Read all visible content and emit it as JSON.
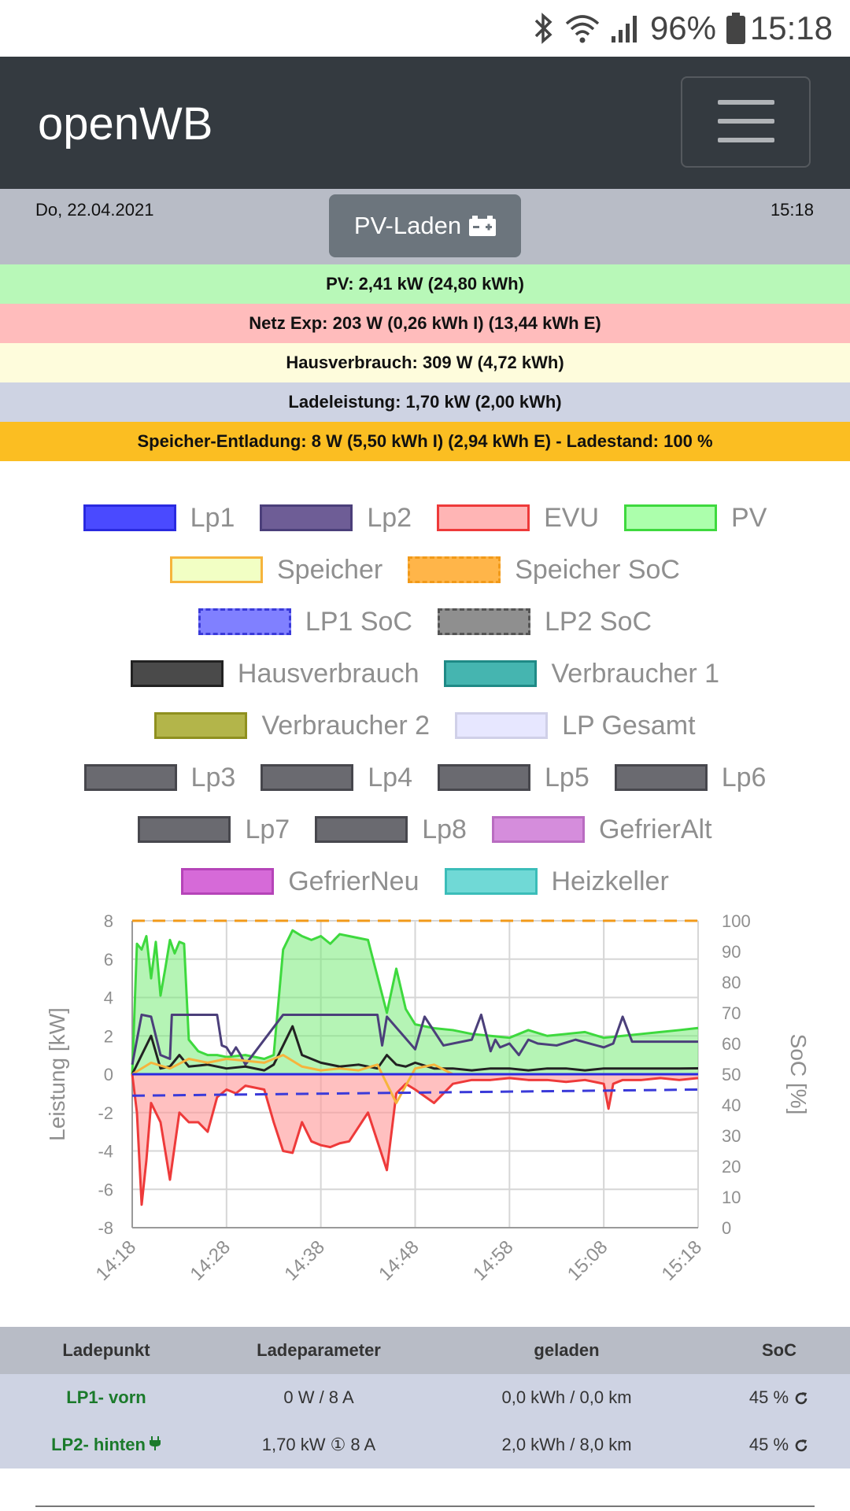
{
  "status_bar": {
    "battery_percent": "96%",
    "time": "15:18",
    "icons": [
      "bluetooth-icon",
      "wifi-icon",
      "signal-icon",
      "battery-icon"
    ]
  },
  "navbar": {
    "brand": "openWB",
    "menu_icon": "hamburger-icon"
  },
  "header": {
    "date": "Do, 22.04.2021",
    "time": "15:18",
    "mode_label": "PV-Laden",
    "mode_icon": "car-battery-icon"
  },
  "info_rows": [
    {
      "text": "PV: 2,41 kW (24,80 kWh)",
      "color": "#b8f8b8"
    },
    {
      "text": "Netz Exp: 203 W (0,26 kWh I) (13,44 kWh E)",
      "color": "#ffbcbc"
    },
    {
      "text": "Hausverbrauch: 309 W (4,72 kWh)",
      "color": "#fefcdc"
    },
    {
      "text": "Ladeleistung: 1,70 kW (2,00 kWh)",
      "color": "#ced3e3"
    },
    {
      "text": "Speicher-Entladung: 8 W (5,50 kWh I) (2,94 kWh E) - Ladestand: 100 %",
      "color": "#fbbe22"
    }
  ],
  "legend": {
    "rows": [
      [
        {
          "label": "Lp1",
          "fill": "#4a4aff",
          "border": "#2a2ae0",
          "dashed": false
        },
        {
          "label": "Lp2",
          "fill": "#6e5d96",
          "border": "#4b3f7a",
          "dashed": false
        },
        {
          "label": "EVU",
          "fill": "#ffb5b5",
          "border": "#ee3a3a",
          "dashed": false
        },
        {
          "label": "PV",
          "fill": "#acffac",
          "border": "#3ed93e",
          "dashed": false
        }
      ],
      [
        {
          "label": "Speicher",
          "fill": "#f2ffc4",
          "border": "#f6b43c",
          "dashed": false
        },
        {
          "label": "Speicher SoC",
          "fill": "#ffb549",
          "border": "#f19a1a",
          "dashed": true
        }
      ],
      [
        {
          "label": "LP1 SoC",
          "fill": "#8080ff",
          "border": "#3a3ad9",
          "dashed": true
        },
        {
          "label": "LP2 SoC",
          "fill": "#8f8f8f",
          "border": "#555555",
          "dashed": true
        }
      ],
      [
        {
          "label": "Hausverbrauch",
          "fill": "#4a4a4a",
          "border": "#222222",
          "dashed": false
        },
        {
          "label": "Verbraucher 1",
          "fill": "#45b5b0",
          "border": "#1f8a86",
          "dashed": false
        }
      ],
      [
        {
          "label": "Verbraucher 2",
          "fill": "#b3b54a",
          "border": "#8f901f",
          "dashed": false
        },
        {
          "label": "LP Gesamt",
          "fill": "#e7e7ff",
          "border": "#d0d0e8",
          "dashed": false
        }
      ],
      [
        {
          "label": "Lp3",
          "fill": "#6a6a70",
          "border": "#47474d",
          "dashed": false
        },
        {
          "label": "Lp4",
          "fill": "#6a6a70",
          "border": "#47474d",
          "dashed": false
        },
        {
          "label": "Lp5",
          "fill": "#6a6a70",
          "border": "#47474d",
          "dashed": false
        },
        {
          "label": "Lp6",
          "fill": "#6a6a70",
          "border": "#47474d",
          "dashed": false
        }
      ],
      [
        {
          "label": "Lp7",
          "fill": "#6a6a70",
          "border": "#47474d",
          "dashed": false
        },
        {
          "label": "Lp8",
          "fill": "#6a6a70",
          "border": "#47474d",
          "dashed": false
        },
        {
          "label": "GefrierAlt",
          "fill": "#d58ddc",
          "border": "#b96cc1",
          "dashed": false
        }
      ],
      [
        {
          "label": "GefrierNeu",
          "fill": "#d66ad8",
          "border": "#b544b8",
          "dashed": false
        },
        {
          "label": "Heizkeller",
          "fill": "#70d9d6",
          "border": "#3bbdb9",
          "dashed": false
        }
      ]
    ]
  },
  "chart_data": {
    "type": "line",
    "xlabel": "",
    "ylabel": "Leistung [kW]",
    "y2label": "SoC [%]",
    "ylim": [
      -8,
      8
    ],
    "y2lim": [
      0,
      100
    ],
    "yticks": [
      "8",
      "6",
      "4",
      "2",
      "0",
      "-2",
      "-4",
      "-6",
      "-8"
    ],
    "y2ticks": [
      "100",
      "90",
      "80",
      "70",
      "60",
      "50",
      "40",
      "30",
      "20",
      "10",
      "0"
    ],
    "xticks": [
      "14:18",
      "14:28",
      "14:38",
      "14:48",
      "14:58",
      "15:08",
      "15:18"
    ],
    "grid": true,
    "series": [
      {
        "name": "PV",
        "color": "#3ed93e",
        "fill": "rgba(120,235,120,0.55)",
        "x": [
          0,
          0.5,
          1,
          1.5,
          2,
          2.5,
          3,
          3.5,
          4,
          4.5,
          5,
          5.5,
          6,
          7,
          8,
          9,
          10,
          12,
          14,
          15,
          16,
          17,
          18,
          19,
          20,
          21,
          22,
          23,
          25,
          27,
          28,
          29,
          30,
          32,
          34,
          36,
          38,
          40,
          42,
          44,
          46,
          48,
          50,
          52,
          54,
          56,
          58,
          60
        ],
        "values": [
          0,
          6.8,
          6.5,
          7.2,
          5.0,
          6.9,
          4.1,
          5.5,
          7.0,
          6.3,
          6.9,
          6.8,
          1.8,
          1.2,
          1.0,
          1.0,
          0.9,
          1.0,
          0.8,
          1.0,
          6.5,
          7.5,
          7.2,
          7.0,
          7.2,
          6.8,
          7.3,
          7.2,
          7.0,
          3.2,
          5.5,
          3.4,
          2.6,
          2.4,
          2.3,
          2.1,
          2.0,
          1.9,
          2.3,
          2.0,
          2.1,
          2.2,
          1.9,
          2.0,
          2.1,
          2.2,
          2.3,
          2.41
        ]
      },
      {
        "name": "EVU",
        "color": "#ee3a3a",
        "fill": "rgba(255,150,150,0.6)",
        "x": [
          0,
          0.5,
          1,
          1.5,
          2,
          3,
          4,
          5,
          6,
          7,
          8,
          9,
          10,
          11,
          12,
          14,
          15,
          16,
          17,
          18,
          19,
          20,
          21,
          22,
          23,
          25,
          27,
          28,
          29,
          30,
          32,
          34,
          36,
          38,
          40,
          42,
          44,
          46,
          48,
          50,
          50.5,
          51,
          52,
          54,
          56,
          58,
          60
        ],
        "values": [
          0,
          -2,
          -6.8,
          -4.5,
          -1.5,
          -2.5,
          -5.5,
          -2.0,
          -2.5,
          -2.5,
          -3.0,
          -1.2,
          -0.8,
          -1.0,
          -0.6,
          -0.8,
          -2.5,
          -4.0,
          -4.1,
          -2.5,
          -3.5,
          -3.7,
          -3.8,
          -3.6,
          -3.5,
          -2.0,
          -5.0,
          -1.0,
          -0.5,
          -0.8,
          -1.5,
          -0.5,
          -0.3,
          -0.3,
          -0.2,
          -0.3,
          -0.3,
          -0.4,
          -0.3,
          -0.5,
          -1.8,
          -0.5,
          -0.3,
          -0.3,
          -0.2,
          -0.3,
          -0.2
        ]
      },
      {
        "name": "Lp2",
        "color": "#4b3f7a",
        "x": [
          0,
          1,
          2,
          3,
          4,
          4.2,
          5,
          9,
          9.5,
          10,
          10.5,
          11,
          11.5,
          12,
          16,
          16.5,
          17,
          20,
          26,
          26.5,
          27,
          30,
          31,
          33,
          36,
          37,
          38,
          38.5,
          39,
          40,
          41,
          42,
          43,
          45,
          47,
          50,
          51,
          52,
          53,
          60
        ],
        "values": [
          0.5,
          3.1,
          3.0,
          1.0,
          0.8,
          3.1,
          3.1,
          3.1,
          1.5,
          1.4,
          1.0,
          1.4,
          1.0,
          0.5,
          3.1,
          3.1,
          3.1,
          3.1,
          3.1,
          1.5,
          3.0,
          1.3,
          3.0,
          1.5,
          1.8,
          3.1,
          1.2,
          1.8,
          1.4,
          1.6,
          1.0,
          1.8,
          1.6,
          1.5,
          1.8,
          1.4,
          1.6,
          3.0,
          1.7,
          1.7
        ]
      },
      {
        "name": "Hausverbrauch",
        "color": "#222222",
        "x": [
          0,
          1,
          2,
          3,
          4,
          5,
          6,
          8,
          10,
          12,
          14,
          15,
          16,
          17,
          18,
          20,
          22,
          24,
          26,
          27,
          28,
          29,
          30,
          32,
          34,
          36,
          38,
          40,
          42,
          44,
          46,
          48,
          50,
          52,
          54,
          56,
          58,
          60
        ],
        "values": [
          0,
          1.0,
          2.0,
          0.3,
          0.4,
          1.0,
          0.4,
          0.5,
          0.3,
          0.4,
          0.2,
          0.5,
          1.5,
          2.5,
          1.0,
          0.6,
          0.4,
          0.5,
          0.3,
          1.0,
          0.5,
          0.4,
          0.6,
          0.3,
          0.3,
          0.2,
          0.3,
          0.3,
          0.2,
          0.3,
          0.3,
          0.2,
          0.3,
          0.3,
          0.3,
          0.3,
          0.3,
          0.31
        ]
      },
      {
        "name": "Speicher",
        "color": "#f6b43c",
        "x": [
          0,
          2,
          4,
          6,
          8,
          10,
          12,
          14,
          16,
          18,
          20,
          22,
          24,
          26,
          28,
          30,
          32,
          34,
          36,
          38,
          40,
          42,
          44,
          46,
          48,
          50,
          52,
          54,
          56,
          58,
          60
        ],
        "values": [
          0,
          0.6,
          0.3,
          0.8,
          0.6,
          0.8,
          0.7,
          0.6,
          1.0,
          0.4,
          0.2,
          0.3,
          0.2,
          0.5,
          -1.5,
          0.3,
          0.5,
          0.0,
          0.0,
          0.0,
          0.0,
          0.0,
          0.0,
          0.0,
          0.0,
          0.0,
          0.0,
          0.0,
          0.0,
          0.0,
          0.0
        ]
      },
      {
        "name": "Lp1",
        "color": "#2a2ae0",
        "x": [
          0,
          60
        ],
        "values": [
          0,
          0
        ]
      },
      {
        "name": "Speicher SoC",
        "color": "#f19a1a",
        "dashed": true,
        "axis": "y2",
        "x": [
          0,
          60
        ],
        "values": [
          100,
          100
        ]
      },
      {
        "name": "LP1 SoC",
        "color": "#3a3ad9",
        "dashed": true,
        "axis": "y2",
        "x": [
          0,
          60
        ],
        "values": [
          43,
          45
        ]
      }
    ]
  },
  "table": {
    "headers": [
      "Ladepunkt",
      "Ladeparameter",
      "geladen",
      "SoC"
    ],
    "rows": [
      {
        "name": "LP1- vorn",
        "param": "0 W / 8 A",
        "charged": "0,0 kWh / 0,0 km",
        "soc": "45 %",
        "plug": false
      },
      {
        "name": "LP2- hinten",
        "param": "1,70 kW ① 8 A",
        "charged": "2,0 kWh / 8,0 km",
        "soc": "45 %",
        "plug": true
      }
    ]
  }
}
